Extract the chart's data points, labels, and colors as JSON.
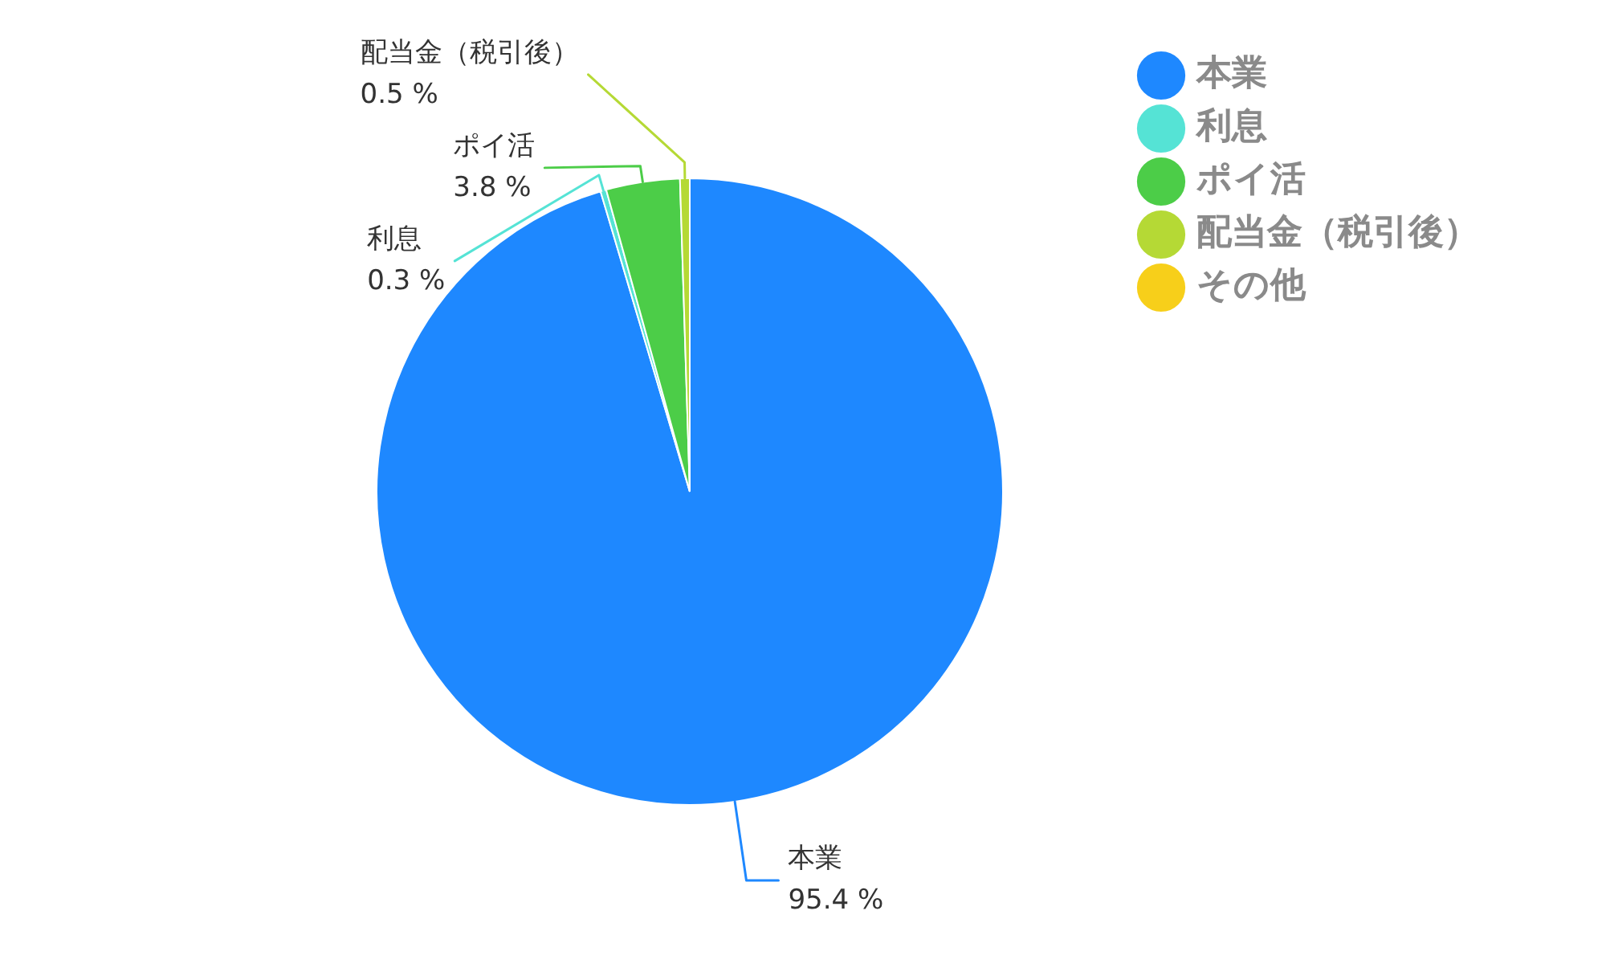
{
  "chart_data": {
    "type": "pie",
    "categories": [
      "本業",
      "利息",
      "ポイ活",
      "配当金（税引後）",
      "その他"
    ],
    "values": [
      95.4,
      0.3,
      3.8,
      0.5,
      0
    ],
    "colors": [
      "#1e88ff",
      "#55e3d5",
      "#4ccd48",
      "#b5d935",
      "#f7cf1a"
    ],
    "value_labels": [
      "95.4 %",
      "0.3 %",
      "3.8 %",
      "0.5 %",
      null
    ],
    "legend": "top right"
  }
}
